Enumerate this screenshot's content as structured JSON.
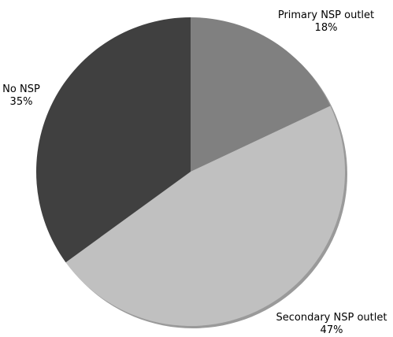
{
  "chart_data": {
    "type": "pie",
    "title": "",
    "slices": [
      {
        "label": "Primary NSP outlet",
        "value": 18,
        "value_label": "18%",
        "color": "#808080"
      },
      {
        "label": "Secondary NSP outlet",
        "value": 47,
        "value_label": "47%",
        "color": "#c0c0c0"
      },
      {
        "label": "No NSP",
        "value": 35,
        "value_label": "35%",
        "color": "#404040"
      }
    ],
    "start": "12 o'clock",
    "direction": "clockwise",
    "legend": "none"
  }
}
